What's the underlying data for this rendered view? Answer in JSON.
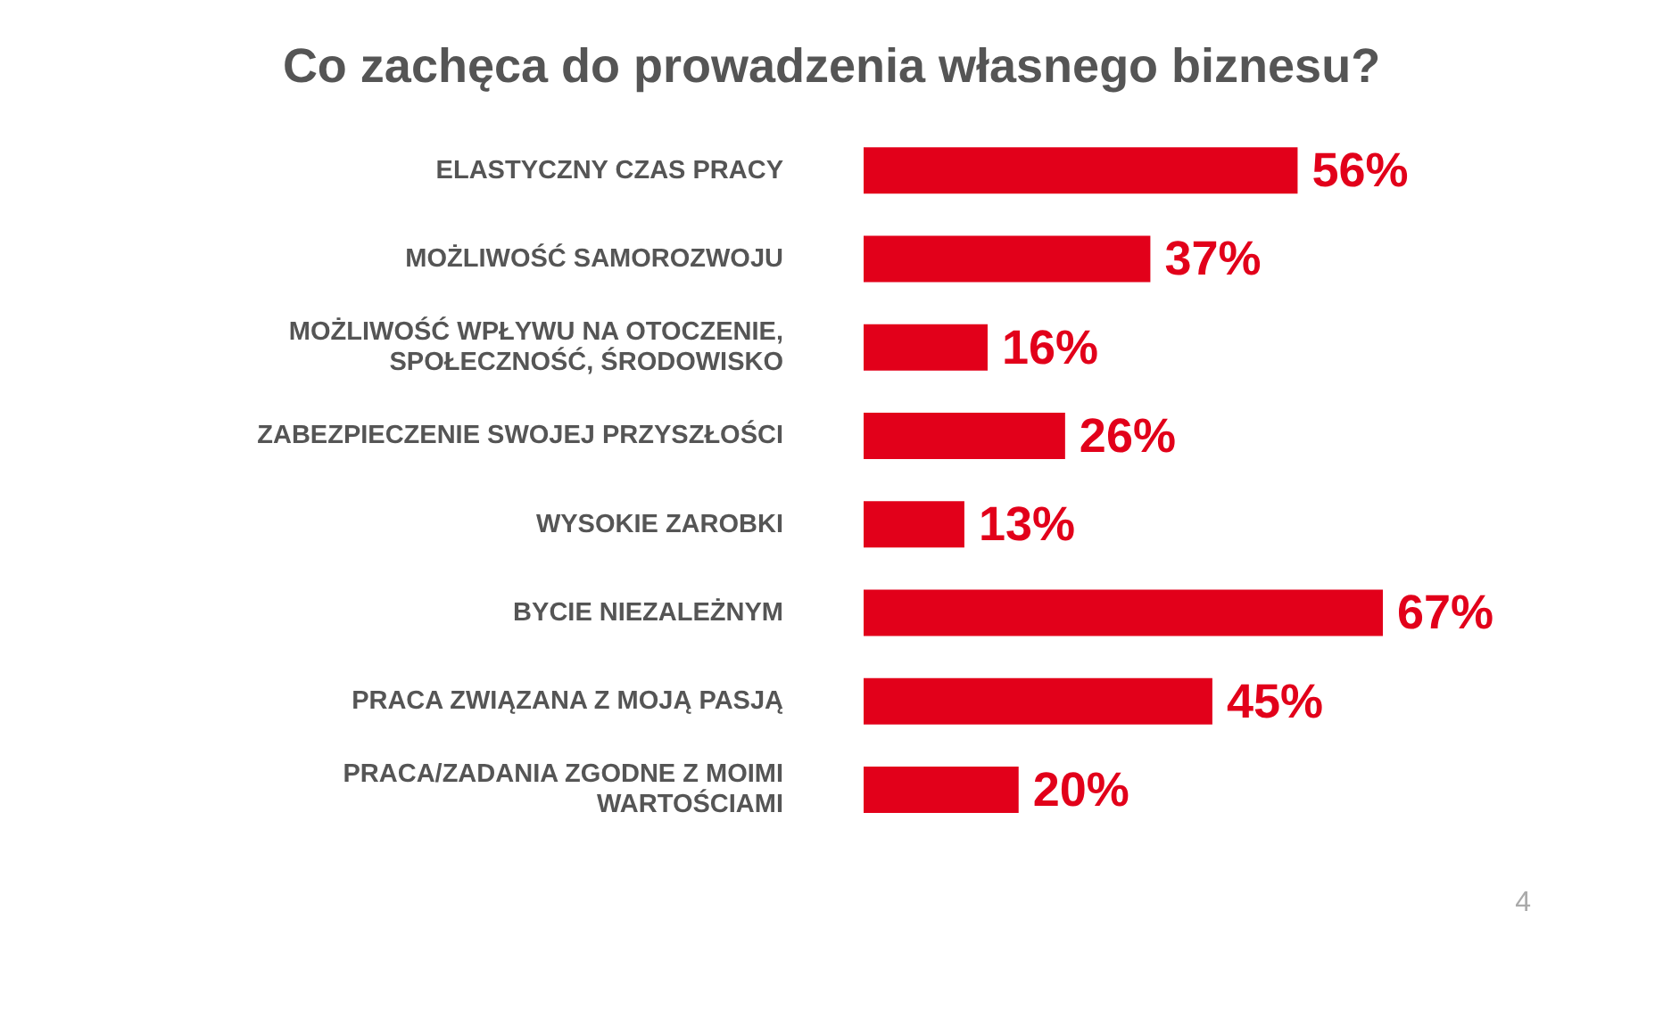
{
  "chart_data": {
    "type": "bar",
    "orientation": "horizontal",
    "title": "Co zachęca do prowadzenia własnego biznesu?",
    "categories": [
      "ELASTYCZNY CZAS PRACY",
      "MOŻLIWOŚĆ SAMOROZWOJU",
      "MOŻLIWOŚĆ WPŁYWU NA OTOCZENIE, SPOŁECZNOŚĆ, ŚRODOWISKO",
      "ZABEZPIECZENIE SWOJEJ PRZYSZŁOŚCI",
      "WYSOKIE ZAROBKI",
      "BYCIE NIEZALEŻNYM",
      "PRACA ZWIĄZANA Z MOJĄ PASJĄ",
      "PRACA/ZADANIA ZGODNE Z MOIMI WARTOŚCIAMI"
    ],
    "values": [
      56,
      37,
      16,
      26,
      13,
      67,
      45,
      20
    ],
    "value_labels": [
      "56%",
      "37%",
      "16%",
      "26%",
      "13%",
      "67%",
      "45%",
      "20%"
    ],
    "color": "#e2001a",
    "grid": false,
    "legend": false,
    "annotations": [
      "4"
    ]
  }
}
